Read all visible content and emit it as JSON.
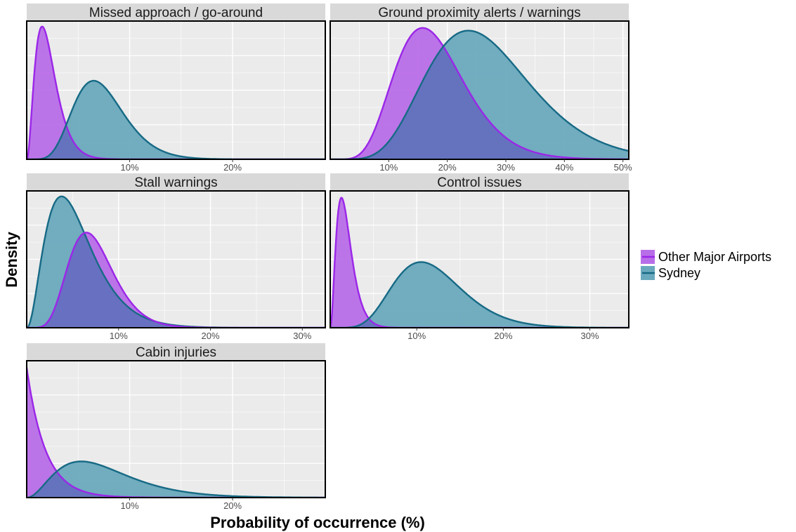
{
  "figure": {
    "xlabel": "Probability of occurrence (%)",
    "ylabel": "Density",
    "legend": {
      "placement": "right",
      "entries": [
        {
          "name": "Other Major Airports",
          "color": "#a020f0"
        },
        {
          "name": "Sydney",
          "color": "#1a6e8c"
        }
      ]
    },
    "colors": {
      "other_fill": "#b86ee8",
      "other_line": "#9b27e8",
      "sydney_fill": "#6aa9bd",
      "sydney_line": "#176a85",
      "overlap_fill": "#6470bf",
      "panel_bg": "#ebebeb",
      "strip_bg": "#d9d9d9",
      "grid": "#ffffff"
    }
  },
  "chart_data": [
    {
      "type": "area",
      "title": "Missed approach / go-around",
      "xlim": [
        0,
        29
      ],
      "ylim": [
        0,
        1.0
      ],
      "tick_labels": [
        "10%",
        "20%"
      ],
      "tick_values": [
        10,
        20
      ],
      "series": [
        {
          "name": "Other Major Airports",
          "shape": "gamma",
          "mode": 1.5,
          "peak": 0.98,
          "shade": [
            2.2,
            7.0
          ]
        },
        {
          "name": "Sydney",
          "shape": "gamma",
          "mode": 6.5,
          "peak": 0.58,
          "shade": [
            7.0,
            13.5
          ]
        }
      ]
    },
    {
      "type": "area",
      "title": "Ground proximity alerts / warnings",
      "xlim": [
        0,
        51
      ],
      "ylim": [
        0,
        1.0
      ],
      "tick_labels": [
        "10%",
        "20%",
        "30%",
        "40%",
        "50%"
      ],
      "tick_values": [
        10,
        20,
        30,
        40,
        50
      ],
      "series": [
        {
          "name": "Other Major Airports",
          "shape": "gamma",
          "mode": 15.8,
          "peak": 0.97,
          "shade": [
            7.0,
            14.0
          ]
        },
        {
          "name": "Sydney",
          "shape": "gamma",
          "mode": 23.6,
          "peak": 0.95,
          "shade": [
            14.0,
            33.0
          ]
        }
      ]
    },
    {
      "type": "area",
      "title": "Stall warnings",
      "xlim": [
        0,
        32.5
      ],
      "ylim": [
        0,
        1.0
      ],
      "tick_labels": [
        "10%",
        "20%",
        "30%"
      ],
      "tick_values": [
        10,
        20,
        30
      ],
      "series": [
        {
          "name": "Sydney",
          "shape": "gamma",
          "mode": 3.8,
          "peak": 0.98,
          "shade": [
            1.9,
            9.7
          ]
        },
        {
          "name": "Other Major Airports",
          "shape": "gamma",
          "mode": 6.5,
          "peak": 0.71,
          "shade": [
            9.7,
            14.0
          ]
        }
      ]
    },
    {
      "type": "area",
      "title": "Control issues",
      "xlim": [
        0,
        34.5
      ],
      "ylim": [
        0,
        1.0
      ],
      "tick_labels": [
        "10%",
        "20%",
        "30%"
      ],
      "tick_values": [
        10,
        20,
        30
      ],
      "series": [
        {
          "name": "Other Major Airports",
          "shape": "gamma",
          "mode": 1.3,
          "peak": 0.97,
          "shade": [
            4.8,
            7.1
          ]
        },
        {
          "name": "Sydney",
          "shape": "gamma",
          "mode": 10.5,
          "peak": 0.49,
          "shade": [
            7.1,
            18.5
          ]
        }
      ]
    },
    {
      "type": "area",
      "title": "Cabin injuries",
      "xlim": [
        0,
        29
      ],
      "ylim": [
        0,
        1.0
      ],
      "tick_labels": [
        "10%",
        "20%"
      ],
      "tick_values": [
        10,
        20
      ],
      "series": [
        {
          "name": "Other Major Airports",
          "shape": "exponential",
          "mode": 0.0,
          "peak": 0.97,
          "shade": [
            2.0,
            4.5
          ]
        },
        {
          "name": "Sydney",
          "shape": "gamma",
          "mode": 5.3,
          "peak": 0.27,
          "shade": [
            4.5,
            11.5
          ]
        }
      ]
    }
  ]
}
